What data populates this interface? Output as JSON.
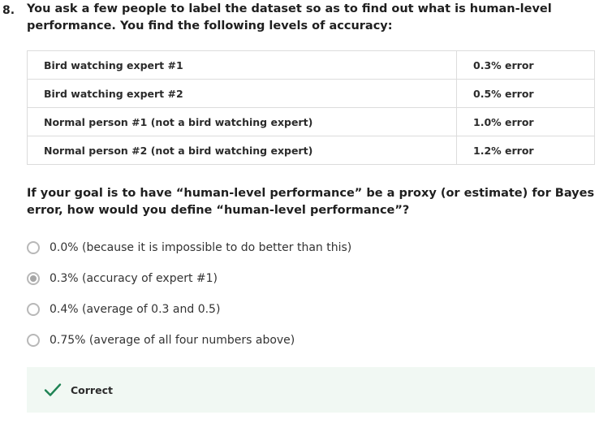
{
  "question": {
    "number": "8.",
    "text": "You ask a few people to label the dataset so as to find out what is human-level performance. You find the following levels of accuracy:"
  },
  "levels_table": {
    "rows": [
      {
        "person": "Bird watching expert #1",
        "error": "0.3% error"
      },
      {
        "person": "Bird watching expert #2",
        "error": "0.5% error"
      },
      {
        "person": "Normal person #1 (not a bird watching expert)",
        "error": "1.0% error"
      },
      {
        "person": "Normal person #2 (not a bird watching expert)",
        "error": "1.2% error"
      }
    ]
  },
  "prompt": "If your goal is to have “human-level performance” be a proxy (or estimate) for Bayes error, how would you define “human-level performance”?",
  "options": [
    {
      "label": "0.0% (because it is impossible to do better than this)",
      "selected": false
    },
    {
      "label": "0.3% (accuracy of expert #1)",
      "selected": true
    },
    {
      "label": "0.4% (average of 0.3 and 0.5)",
      "selected": false
    },
    {
      "label": "0.75% (average of all four numbers above)",
      "selected": false
    }
  ],
  "feedback": {
    "icon": "checkmark-icon",
    "label": "Correct",
    "color": "#1f8354",
    "background": "#f1f8f3"
  }
}
